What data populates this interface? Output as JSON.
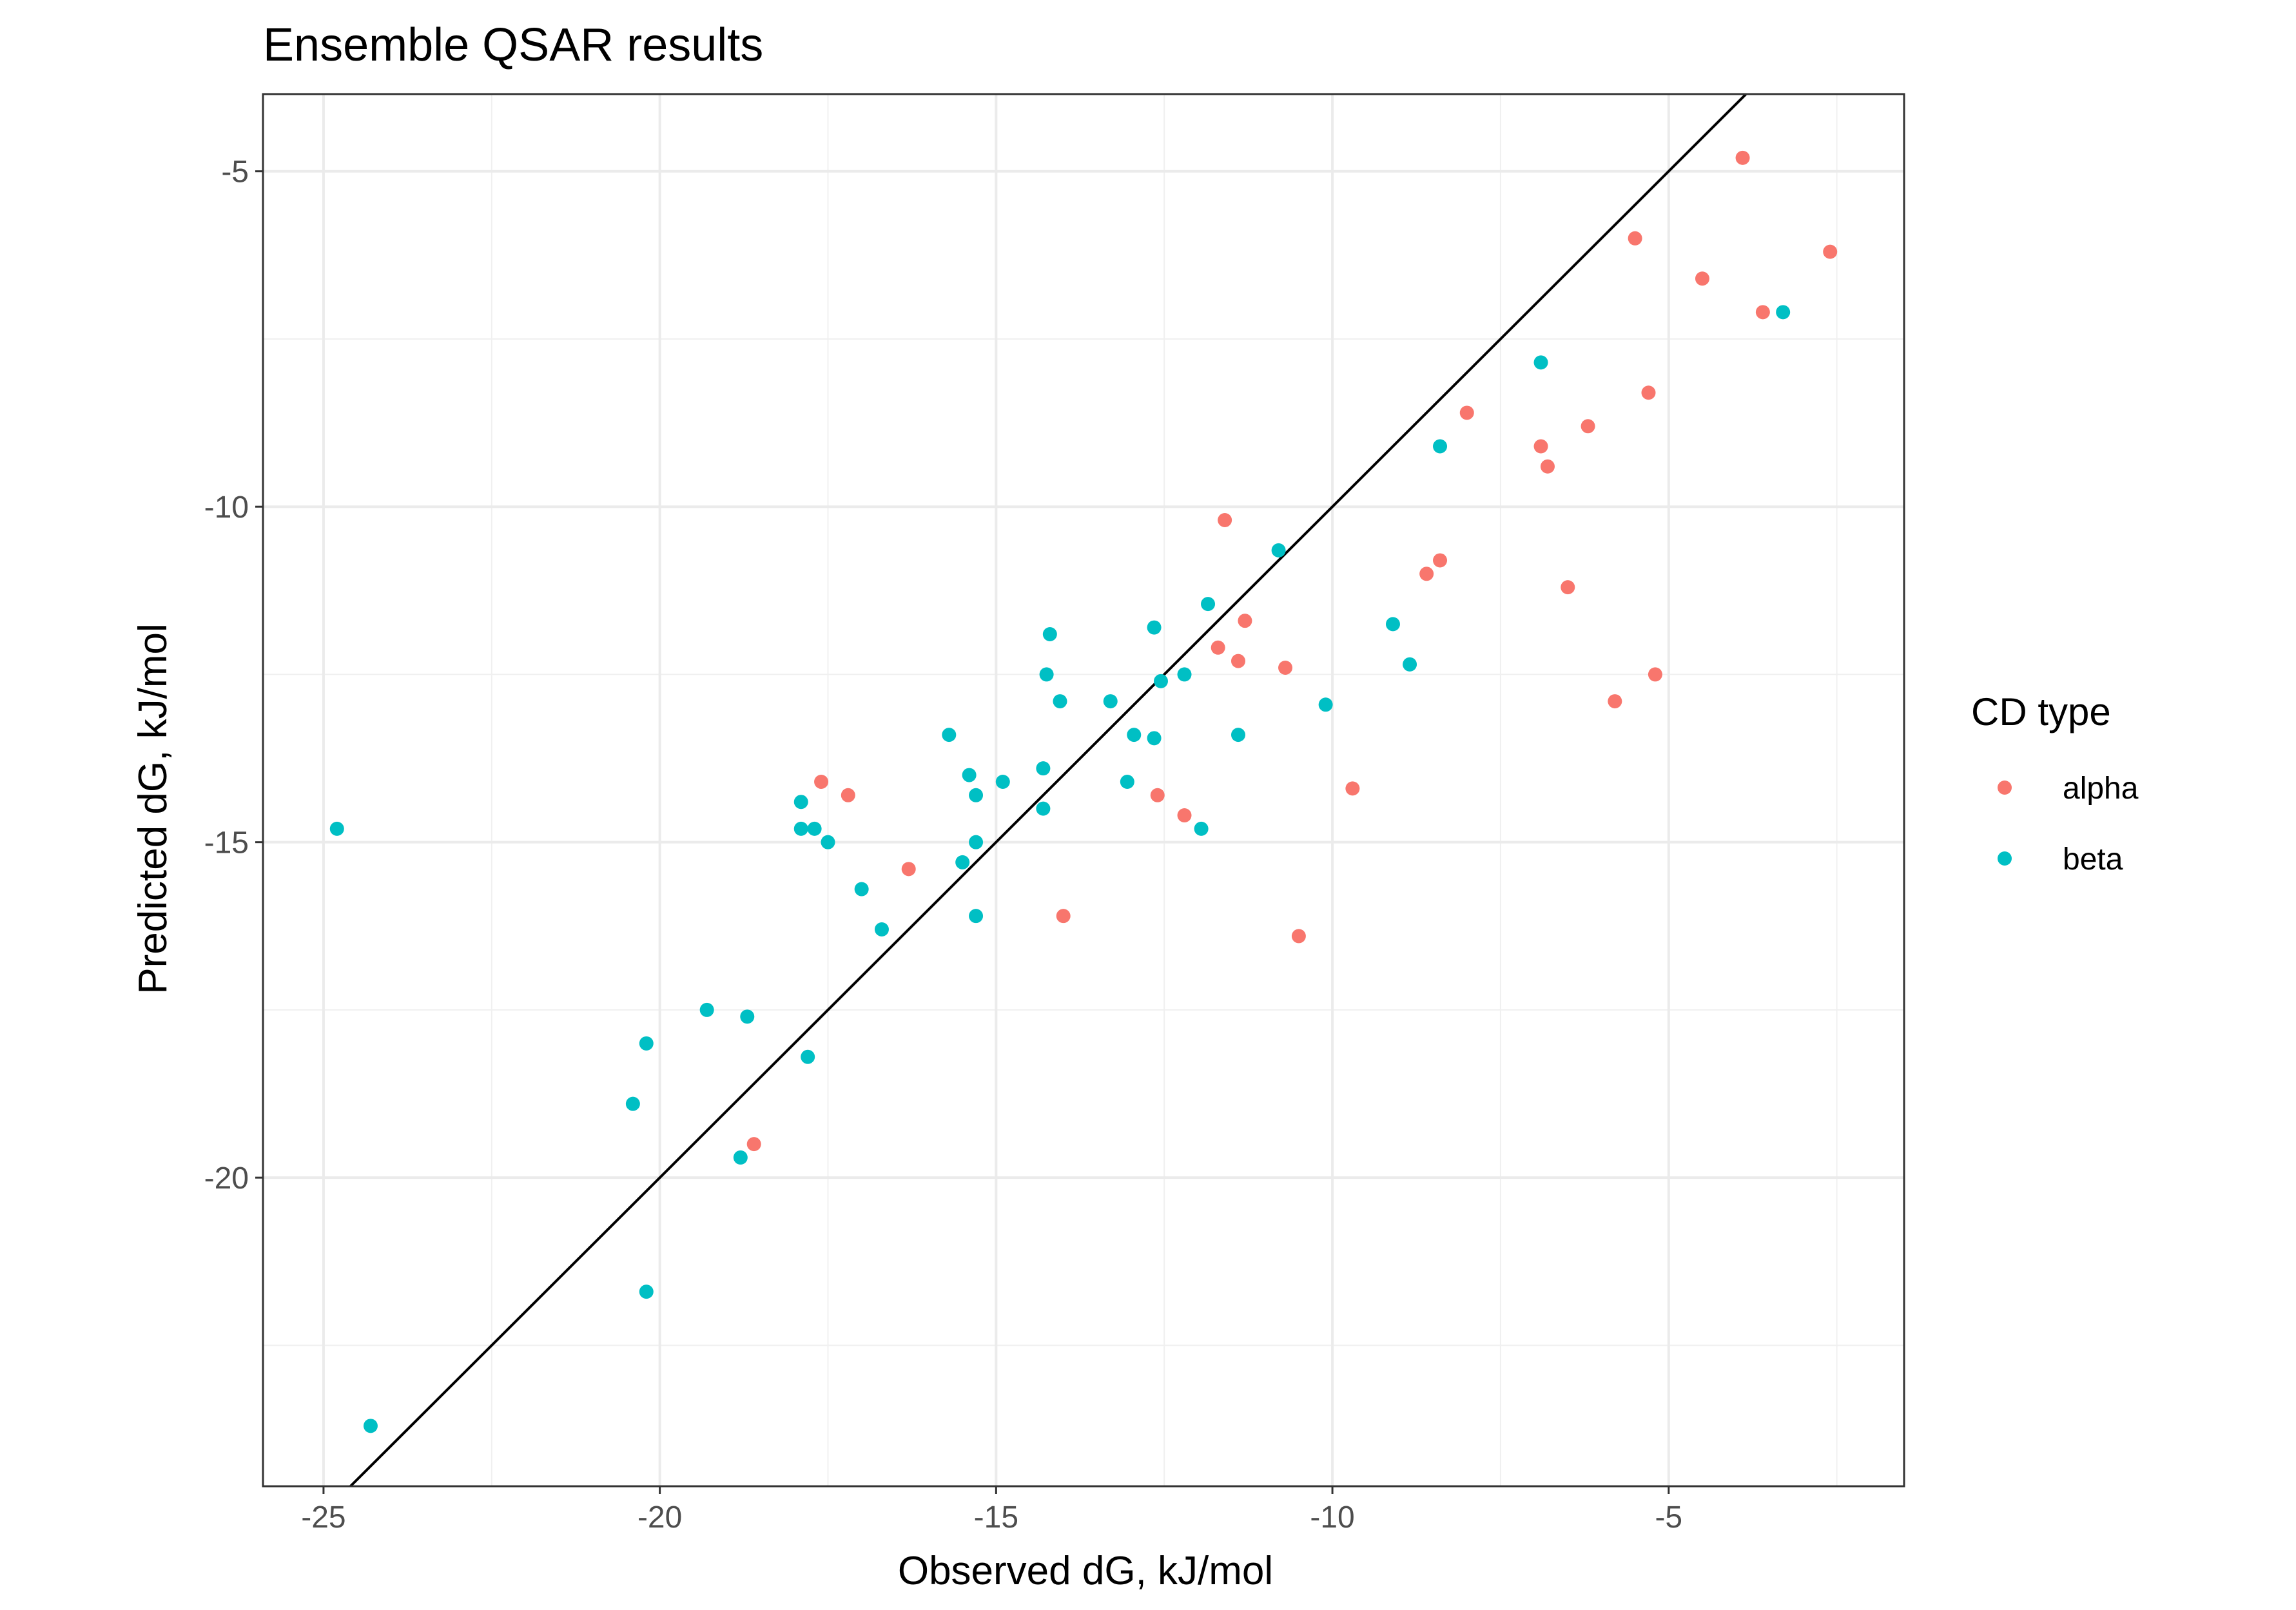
{
  "chart_data": {
    "type": "scatter",
    "title": "Ensemble QSAR results",
    "xlabel": "Observed dG, kJ/mol",
    "ylabel": "Predicted dG, kJ/mol",
    "xlim": [
      -25.9,
      -1.5
    ],
    "ylim": [
      -24.6,
      -3.85
    ],
    "x_ticks": [
      -25,
      -20,
      -15,
      -10,
      -5
    ],
    "y_ticks": [
      -20,
      -15,
      -10,
      -5
    ],
    "x_tick_labels": [
      "-25",
      "-20",
      "-15",
      "-10",
      "-5"
    ],
    "y_tick_labels": [
      "-20",
      "-15",
      "-10",
      "-5"
    ],
    "reference_line": {
      "slope": 1,
      "intercept": 0,
      "color": "#000000"
    },
    "grid": true,
    "legend": {
      "title": "CD type",
      "position": "right"
    },
    "series": [
      {
        "name": "alpha",
        "color": "#F8766D",
        "points": [
          [
            -18.6,
            -19.5
          ],
          [
            -17.6,
            -14.1
          ],
          [
            -17.2,
            -14.3
          ],
          [
            -16.3,
            -15.4
          ],
          [
            -14.0,
            -16.1
          ],
          [
            -12.6,
            -14.3
          ],
          [
            -12.2,
            -14.6
          ],
          [
            -11.6,
            -10.2
          ],
          [
            -11.7,
            -12.1
          ],
          [
            -11.4,
            -12.3
          ],
          [
            -11.3,
            -11.7
          ],
          [
            -10.7,
            -12.4
          ],
          [
            -10.5,
            -16.4
          ],
          [
            -9.7,
            -14.2
          ],
          [
            -8.6,
            -11.0
          ],
          [
            -8.4,
            -10.8
          ],
          [
            -8.0,
            -8.6
          ],
          [
            -6.9,
            -9.1
          ],
          [
            -6.8,
            -9.4
          ],
          [
            -6.5,
            -11.2
          ],
          [
            -6.2,
            -8.8
          ],
          [
            -5.8,
            -12.9
          ],
          [
            -5.5,
            -6.0
          ],
          [
            -5.3,
            -8.3
          ],
          [
            -5.2,
            -12.5
          ],
          [
            -4.5,
            -6.6
          ],
          [
            -3.9,
            -4.8
          ],
          [
            -3.6,
            -7.1
          ],
          [
            -2.6,
            -6.2
          ]
        ]
      },
      {
        "name": "beta",
        "color": "#00BFC4",
        "points": [
          [
            -24.8,
            -14.8
          ],
          [
            -24.3,
            -23.7
          ],
          [
            -20.4,
            -18.9
          ],
          [
            -20.2,
            -18.0
          ],
          [
            -20.2,
            -21.7
          ],
          [
            -19.3,
            -17.5
          ],
          [
            -18.8,
            -19.7
          ],
          [
            -18.7,
            -17.6
          ],
          [
            -17.9,
            -14.4
          ],
          [
            -17.9,
            -14.8
          ],
          [
            -17.8,
            -18.2
          ],
          [
            -17.7,
            -14.8
          ],
          [
            -17.5,
            -15.0
          ],
          [
            -17.0,
            -15.7
          ],
          [
            -16.7,
            -16.3
          ],
          [
            -15.7,
            -13.4
          ],
          [
            -15.5,
            -15.3
          ],
          [
            -15.4,
            -14.0
          ],
          [
            -15.3,
            -14.3
          ],
          [
            -15.3,
            -15.0
          ],
          [
            -15.3,
            -16.1
          ],
          [
            -14.9,
            -14.1
          ],
          [
            -14.3,
            -13.9
          ],
          [
            -14.3,
            -14.5
          ],
          [
            -14.25,
            -12.5
          ],
          [
            -14.2,
            -11.9
          ],
          [
            -14.05,
            -12.9
          ],
          [
            -13.3,
            -12.9
          ],
          [
            -13.05,
            -14.1
          ],
          [
            -12.95,
            -13.4
          ],
          [
            -12.65,
            -13.45
          ],
          [
            -12.65,
            -11.8
          ],
          [
            -12.55,
            -12.6
          ],
          [
            -12.2,
            -12.5
          ],
          [
            -11.95,
            -14.8
          ],
          [
            -11.85,
            -11.45
          ],
          [
            -11.4,
            -13.4
          ],
          [
            -10.8,
            -10.65
          ],
          [
            -10.1,
            -12.95
          ],
          [
            -9.1,
            -11.75
          ],
          [
            -8.85,
            -12.35
          ],
          [
            -8.4,
            -9.1
          ],
          [
            -6.9,
            -7.85
          ],
          [
            -3.3,
            -7.1
          ]
        ]
      }
    ]
  }
}
